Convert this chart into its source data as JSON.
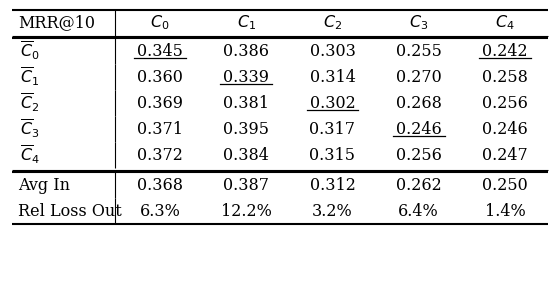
{
  "header_row": [
    "MRR@10",
    "C_0",
    "C_1",
    "C_2",
    "C_3",
    "C_4"
  ],
  "row_labels": [
    "C_0_bar",
    "C_1_bar",
    "C_2_bar",
    "C_3_bar",
    "C_4_bar"
  ],
  "data": [
    [
      "0.345",
      "0.386",
      "0.303",
      "0.255",
      "0.242"
    ],
    [
      "0.360",
      "0.339",
      "0.314",
      "0.270",
      "0.258"
    ],
    [
      "0.369",
      "0.381",
      "0.302",
      "0.268",
      "0.256"
    ],
    [
      "0.371",
      "0.395",
      "0.317",
      "0.246",
      "0.246"
    ],
    [
      "0.372",
      "0.384",
      "0.315",
      "0.256",
      "0.247"
    ]
  ],
  "underlined_cells": [
    [
      0,
      0
    ],
    [
      0,
      4
    ],
    [
      1,
      1
    ],
    [
      2,
      2
    ],
    [
      3,
      3
    ]
  ],
  "footer_labels": [
    "Avg In",
    "Rel Loss Out"
  ],
  "footer_data": [
    [
      "0.368",
      "0.387",
      "0.312",
      "0.262",
      "0.250"
    ],
    [
      "6.3%",
      "12.2%",
      "3.2%",
      "6.4%",
      "1.4%"
    ]
  ],
  "font_size": 11.5
}
